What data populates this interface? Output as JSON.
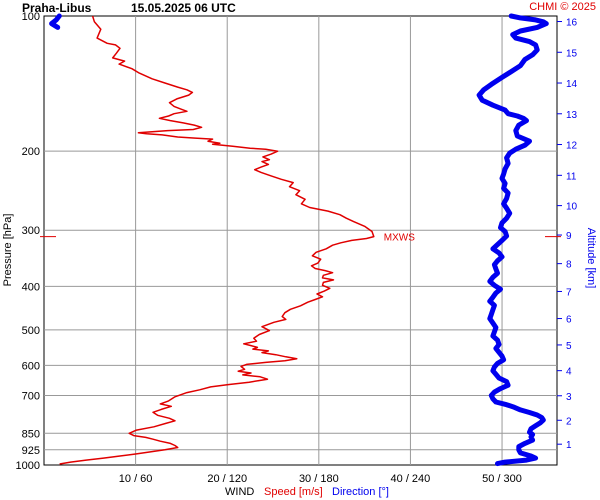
{
  "header": {
    "station": "Praha-Libus",
    "datetime": "15.05.2025 06 UTC",
    "credit": "CHMI © 2025"
  },
  "labels": {
    "y_left": "Pressure [hPa]",
    "y_right": "Altitude [km]",
    "x_wind": "WIND",
    "x_speed": "Speed [m/s]",
    "x_dir": "Direction [°]",
    "mxws": "MXWS"
  },
  "colors": {
    "speed": "#e00000",
    "direction": "#0000ee",
    "grid": "#999999",
    "axis": "#000000"
  },
  "chart_data": {
    "type": "line",
    "title": "Praha-Libus 15.05.2025 06 UTC",
    "ylabel": "Pressure [hPa]",
    "y2label": "Altitude [km]",
    "y_scale": "log",
    "ylim": [
      1000,
      100
    ],
    "y_ticks": [
      100,
      200,
      300,
      400,
      500,
      600,
      700,
      850,
      925,
      1000
    ],
    "y2_ticks": [
      1,
      2,
      3,
      4,
      5,
      6,
      7,
      8,
      9,
      10,
      11,
      12,
      13,
      14,
      15,
      16
    ],
    "x_ticks": [
      "10 / 60",
      "20 / 120",
      "30 / 180",
      "40 / 240",
      "50 / 300"
    ],
    "speed_xlim": [
      0,
      56
    ],
    "direction_xlim": [
      0,
      336
    ],
    "mxws": {
      "speed": 36,
      "pressure": 310
    },
    "series": [
      {
        "name": "Speed [m/s]",
        "color": "#e00000",
        "points": [
          [
            5.3,
            100
          ],
          [
            5.5,
            103
          ],
          [
            6.2,
            107
          ],
          [
            5.8,
            112
          ],
          [
            6.9,
            115
          ],
          [
            7.8,
            116
          ],
          [
            8.3,
            118
          ],
          [
            7.9,
            121
          ],
          [
            7.5,
            124
          ],
          [
            8.8,
            126
          ],
          [
            8.2,
            128
          ],
          [
            9.6,
            131
          ],
          [
            10.4,
            134
          ],
          [
            11.8,
            138
          ],
          [
            13.2,
            141
          ],
          [
            14.6,
            144
          ],
          [
            15.6,
            146
          ],
          [
            16.2,
            148
          ],
          [
            15.8,
            150
          ],
          [
            14.5,
            153
          ],
          [
            13.7,
            156
          ],
          [
            14.2,
            159
          ],
          [
            14.9,
            161
          ],
          [
            15.6,
            163
          ],
          [
            14.2,
            165
          ],
          [
            13.6,
            167
          ],
          [
            12.6,
            169
          ],
          [
            13.8,
            171
          ],
          [
            15.2,
            173
          ],
          [
            16.4,
            175
          ],
          [
            17.2,
            177
          ],
          [
            16.3,
            179
          ],
          [
            13.5,
            180
          ],
          [
            11.8,
            181
          ],
          [
            10.3,
            182
          ],
          [
            11.2,
            183
          ],
          [
            12.9,
            184
          ],
          [
            14.6,
            186
          ],
          [
            16.5,
            187
          ],
          [
            18.4,
            188
          ],
          [
            17.9,
            190
          ],
          [
            19.2,
            192
          ],
          [
            18.4,
            193
          ],
          [
            20.6,
            195
          ],
          [
            22.5,
            197
          ],
          [
            24.2,
            198
          ],
          [
            25.5,
            200
          ],
          [
            24.8,
            203
          ],
          [
            23.9,
            206
          ],
          [
            24.6,
            209
          ],
          [
            23.8,
            211
          ],
          [
            24.5,
            214
          ],
          [
            23.7,
            217
          ],
          [
            23.0,
            220
          ],
          [
            23.7,
            223
          ],
          [
            24.8,
            227
          ],
          [
            25.9,
            231
          ],
          [
            27.2,
            235
          ],
          [
            26.8,
            240
          ],
          [
            27.9,
            245
          ],
          [
            27.5,
            250
          ],
          [
            28.5,
            256
          ],
          [
            28.1,
            262
          ],
          [
            29.0,
            267
          ],
          [
            31.0,
            272
          ],
          [
            32.3,
            277
          ],
          [
            33.0,
            282
          ],
          [
            33.8,
            287
          ],
          [
            35.0,
            294
          ],
          [
            35.8,
            302
          ],
          [
            36.0,
            310
          ],
          [
            35.2,
            313
          ],
          [
            33.6,
            316
          ],
          [
            32.4,
            320
          ],
          [
            31.5,
            324
          ],
          [
            30.8,
            330
          ],
          [
            29.7,
            336
          ],
          [
            29.3,
            342
          ],
          [
            30.2,
            348
          ],
          [
            29.9,
            355
          ],
          [
            29.2,
            360
          ],
          [
            29.6,
            365
          ],
          [
            30.7,
            369
          ],
          [
            31.5,
            373
          ],
          [
            30.5,
            378
          ],
          [
            30.4,
            383
          ],
          [
            31.6,
            387
          ],
          [
            30.5,
            392
          ],
          [
            30.4,
            398
          ],
          [
            31.2,
            404
          ],
          [
            30.6,
            410
          ],
          [
            29.8,
            416
          ],
          [
            30.4,
            422
          ],
          [
            29.6,
            428
          ],
          [
            28.8,
            434
          ],
          [
            28.0,
            442
          ],
          [
            26.9,
            450
          ],
          [
            26.3,
            458
          ],
          [
            26.0,
            467
          ],
          [
            26.4,
            474
          ],
          [
            25.1,
            481
          ],
          [
            23.8,
            492
          ],
          [
            24.6,
            502
          ],
          [
            23.5,
            512
          ],
          [
            22.9,
            522
          ],
          [
            23.2,
            530
          ],
          [
            21.8,
            537
          ],
          [
            22.6,
            542
          ],
          [
            23.3,
            547
          ],
          [
            22.8,
            552
          ],
          [
            24.5,
            557
          ],
          [
            23.8,
            562
          ],
          [
            25.3,
            568
          ],
          [
            26.4,
            574
          ],
          [
            27.6,
            580
          ],
          [
            26.3,
            586
          ],
          [
            24.2,
            591
          ],
          [
            22.1,
            597
          ],
          [
            21.5,
            603
          ],
          [
            21.9,
            612
          ],
          [
            21.2,
            618
          ],
          [
            22.6,
            624
          ],
          [
            21.7,
            630
          ],
          [
            23.6,
            636
          ],
          [
            24.4,
            644
          ],
          [
            22.4,
            654
          ],
          [
            20.1,
            662
          ],
          [
            18.2,
            670
          ],
          [
            17.0,
            680
          ],
          [
            15.6,
            690
          ],
          [
            14.3,
            705
          ],
          [
            13.6,
            720
          ],
          [
            12.7,
            731
          ],
          [
            13.9,
            740
          ],
          [
            12.8,
            752
          ],
          [
            11.9,
            763
          ],
          [
            12.4,
            775
          ],
          [
            13.7,
            787
          ],
          [
            14.3,
            797
          ],
          [
            13.3,
            808
          ],
          [
            12.0,
            822
          ],
          [
            10.1,
            836
          ],
          [
            9.3,
            850
          ],
          [
            9.8,
            860
          ],
          [
            11.1,
            868
          ],
          [
            11.9,
            876
          ],
          [
            12.7,
            885
          ],
          [
            13.8,
            895
          ],
          [
            14.3,
            905
          ],
          [
            14.6,
            914
          ],
          [
            13.2,
            925
          ],
          [
            11.6,
            935
          ],
          [
            10.0,
            945
          ],
          [
            8.3,
            955
          ],
          [
            6.5,
            965
          ],
          [
            4.6,
            975
          ],
          [
            2.9,
            985
          ],
          [
            1.7,
            995
          ]
        ]
      },
      {
        "name": "Direction [°]",
        "color": "#0000ee",
        "points": [
          [
            10,
            100
          ],
          [
            8,
            102
          ],
          [
            5,
            104
          ],
          [
            9,
            106
          ],
          [
            306,
            100
          ],
          [
            312,
            101
          ],
          [
            322,
            102
          ],
          [
            327,
            103
          ],
          [
            329,
            104
          ],
          [
            323,
            106
          ],
          [
            312,
            108
          ],
          [
            307,
            110
          ],
          [
            309,
            112
          ],
          [
            318,
            114
          ],
          [
            322,
            116
          ],
          [
            323,
            119
          ],
          [
            320,
            122
          ],
          [
            315,
            125
          ],
          [
            312,
            129
          ],
          [
            306,
            133
          ],
          [
            300,
            137
          ],
          [
            293,
            142
          ],
          [
            288,
            146
          ],
          [
            285,
            150
          ],
          [
            287,
            154
          ],
          [
            294,
            158
          ],
          [
            302,
            162
          ],
          [
            304,
            165
          ],
          [
            310,
            167
          ],
          [
            314,
            169
          ],
          [
            316,
            171
          ],
          [
            311,
            175
          ],
          [
            309,
            180
          ],
          [
            310,
            185
          ],
          [
            318,
            190
          ],
          [
            315,
            194
          ],
          [
            309,
            198
          ],
          [
            305,
            202
          ],
          [
            303,
            207
          ],
          [
            304,
            213
          ],
          [
            302,
            219
          ],
          [
            301,
            225
          ],
          [
            300,
            230
          ],
          [
            302,
            236
          ],
          [
            301,
            242
          ],
          [
            304,
            248
          ],
          [
            303,
            255
          ],
          [
            301,
            262
          ],
          [
            303,
            268
          ],
          [
            305,
            275
          ],
          [
            303,
            282
          ],
          [
            300,
            289
          ],
          [
            299,
            296
          ],
          [
            302,
            302
          ],
          [
            303,
            309
          ],
          [
            300,
            316
          ],
          [
            297,
            323
          ],
          [
            294,
            330
          ],
          [
            298,
            337
          ],
          [
            300,
            344
          ],
          [
            297,
            351
          ],
          [
            295,
            358
          ],
          [
            296,
            366
          ],
          [
            297,
            374
          ],
          [
            294,
            382
          ],
          [
            292,
            390
          ],
          [
            295,
            398
          ],
          [
            299,
            406
          ],
          [
            296,
            414
          ],
          [
            294,
            423
          ],
          [
            292,
            432
          ],
          [
            295,
            441
          ],
          [
            294,
            451
          ],
          [
            293,
            462
          ],
          [
            292,
            472
          ],
          [
            294,
            483
          ],
          [
            296,
            494
          ],
          [
            295,
            505
          ],
          [
            294,
            516
          ],
          [
            297,
            527
          ],
          [
            298,
            539
          ],
          [
            296,
            550
          ],
          [
            298,
            561
          ],
          [
            300,
            572
          ],
          [
            301,
            583
          ],
          [
            297,
            594
          ],
          [
            295,
            605
          ],
          [
            294,
            617
          ],
          [
            296,
            628
          ],
          [
            298,
            640
          ],
          [
            303,
            652
          ],
          [
            304,
            664
          ],
          [
            299,
            676
          ],
          [
            295,
            688
          ],
          [
            293,
            700
          ],
          [
            294,
            712
          ],
          [
            296,
            724
          ],
          [
            303,
            734
          ],
          [
            308,
            744
          ],
          [
            312,
            754
          ],
          [
            318,
            764
          ],
          [
            323,
            774
          ],
          [
            326,
            784
          ],
          [
            327,
            794
          ],
          [
            325,
            806
          ],
          [
            322,
            818
          ],
          [
            319,
            830
          ],
          [
            318,
            845
          ],
          [
            320,
            855
          ],
          [
            319,
            866
          ],
          [
            320,
            880
          ],
          [
            315,
            895
          ],
          [
            311,
            910
          ],
          [
            311,
            925
          ],
          [
            312,
            940
          ],
          [
            319,
            955
          ],
          [
            322,
            965
          ],
          [
            316,
            975
          ],
          [
            302,
            985
          ],
          [
            297,
            993
          ]
        ]
      }
    ]
  }
}
